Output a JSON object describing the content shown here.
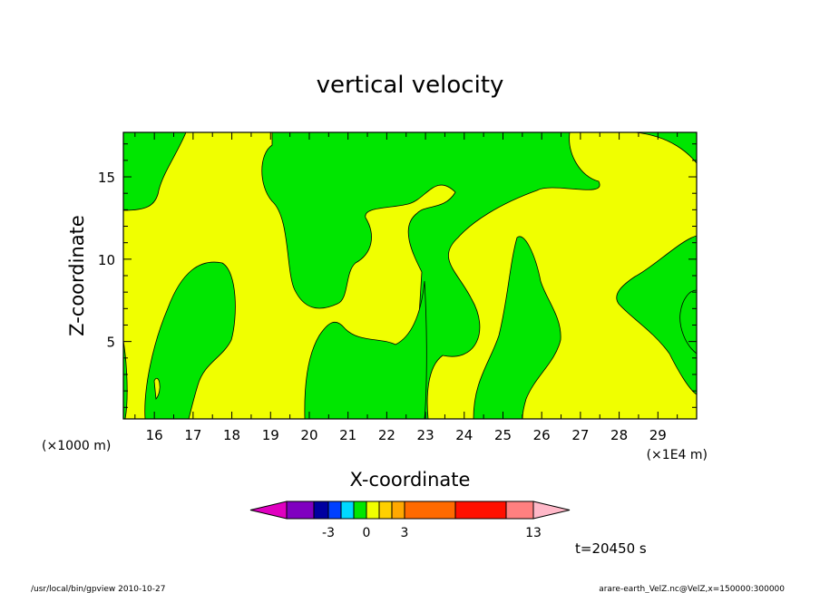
{
  "chart_data": {
    "type": "heatmap",
    "title": "vertical velocity",
    "xlabel": "X-coordinate",
    "ylabel": "Z-coordinate",
    "x_scale_label": "(×1E4 m)",
    "y_scale_label": "(×1000 m)",
    "xlim": [
      15.2,
      30.0
    ],
    "ylim": [
      0.3,
      17.7
    ],
    "x_ticks": [
      "16",
      "17",
      "18",
      "19",
      "20",
      "21",
      "22",
      "23",
      "24",
      "25",
      "26",
      "27",
      "28",
      "29"
    ],
    "y_ticks": [
      "5",
      "10",
      "15"
    ],
    "colors": {
      "positive": "#f0ff00",
      "negative": "#00e600"
    },
    "colorbar": {
      "colors": [
        "#e000c0",
        "#8000c0",
        "#0000a0",
        "#0040ff",
        "#00d8ff",
        "#00e600",
        "#f0ff00",
        "#ffd000",
        "#ffa800",
        "#ff6a00",
        "#ff1000",
        "#ff8080",
        "#ffb8c8"
      ],
      "tick_labels": [
        "-3",
        "0",
        "3",
        "13"
      ]
    },
    "time_label": "t=20450 s"
  },
  "footer": {
    "left": "/usr/local/bin/gpview   2010-10-27",
    "right": "arare-earth_VelZ.nc@VelZ,x=150000:300000"
  }
}
